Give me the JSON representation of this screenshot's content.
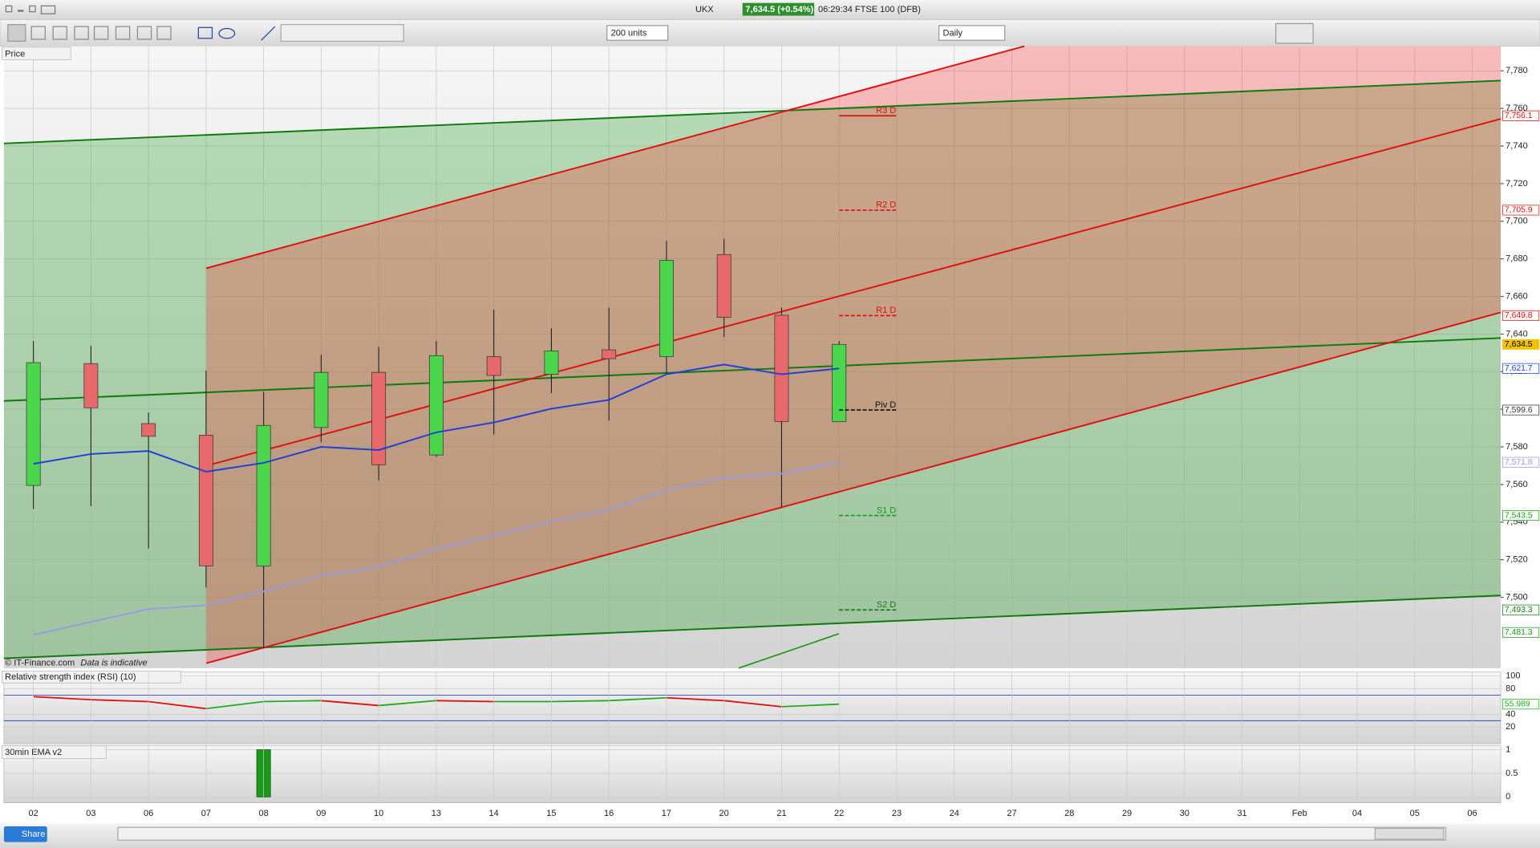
{
  "toolbar": {
    "symbol": "UKX",
    "price": "7,634.5 (+0.54%)",
    "info": "06:29:34 FTSE 100 (DFB)",
    "units": "200 units",
    "interval": "Daily"
  },
  "footer": {
    "copyright": "© IT-Finance.com",
    "note": "Data is indicative",
    "share": "Share"
  },
  "chart_data": [
    {
      "type": "candlestick",
      "title": "Price",
      "categories": [
        "02",
        "03",
        "06",
        "07",
        "08",
        "09",
        "10",
        "13",
        "14",
        "15",
        "16",
        "17",
        "20",
        "21",
        "22",
        "23",
        "24",
        "27",
        "28",
        "29",
        "30",
        "31",
        "Feb",
        "04",
        "05",
        "06"
      ],
      "open": [
        7559.5,
        7624.3,
        7592.4,
        7586.2,
        7516.7,
        7590.3,
        7619.6,
        7575.7,
        7628,
        7618.6,
        7631.6,
        7628,
        7682.3,
        7650,
        7593.5,
        null,
        null,
        null,
        null,
        null,
        null,
        null,
        null,
        null,
        null,
        null
      ],
      "high": [
        7636.3,
        7633.7,
        7598.2,
        7620.6,
        7609.2,
        7629,
        7633.2,
        7636.3,
        7653,
        7643.1,
        7654.1,
        7689.6,
        7690.7,
        7654.1,
        7636.3,
        null,
        null,
        null,
        null,
        null,
        null,
        null,
        null,
        null,
        null,
        null
      ],
      "low": [
        7547,
        7548.5,
        7526,
        7505.2,
        7472.8,
        7582.5,
        7562.1,
        7574.7,
        7586.7,
        7608.6,
        7594,
        7619.1,
        7638.4,
        7548,
        7593.5,
        null,
        null,
        null,
        null,
        null,
        null,
        null,
        null,
        null,
        null,
        null
      ],
      "close": [
        7624.8,
        7600.8,
        7585.6,
        7516.7,
        7591.4,
        7619.6,
        7570.5,
        7628.5,
        7618,
        7631,
        7626.9,
        7679.2,
        7648.9,
        7593.5,
        7634.5,
        null,
        null,
        null,
        null,
        null,
        null,
        null,
        null,
        null,
        null,
        null
      ],
      "up_color": "#4cd64c",
      "down_color": "#e8696b",
      "series": [
        {
          "color": "#1f3fd6",
          "values": [
            7571,
            7576.2,
            7577.8,
            7566.8,
            7571.5,
            7580,
            7578.3,
            7587.7,
            7593,
            7600.3,
            7605,
            7618.6,
            7623.8,
            7618.6,
            7621.7,
            null,
            null,
            null,
            null,
            null,
            null,
            null,
            null,
            null,
            null,
            null
          ]
        },
        {
          "color": "#9a9ae0",
          "values": [
            7480,
            7486.9,
            7493.7,
            7495.8,
            7503.1,
            7511.5,
            7516.2,
            7525.6,
            7532.9,
            7540.2,
            7546.5,
            7557,
            7563.7,
            7565.8,
            7571.8,
            null,
            null,
            null,
            null,
            null,
            null,
            null,
            null,
            null,
            null,
            null
          ]
        }
      ],
      "pivots": [
        {
          "name": "R3 D",
          "value": 7756.1,
          "color": "#e01010",
          "dashed": false
        },
        {
          "name": "R2 D",
          "value": 7705.9,
          "color": "#e01010",
          "dashed": true
        },
        {
          "name": "R1 D",
          "value": 7649.8,
          "color": "#e01010",
          "dashed": true
        },
        {
          "name": "Piv D",
          "value": 7599.6,
          "color": "#111111",
          "dashed": true
        },
        {
          "name": "S1 D",
          "value": 7543.5,
          "color": "#1a9a1a",
          "dashed": true
        },
        {
          "name": "S2 D",
          "value": 7493.3,
          "color": "#1a7a1a",
          "dashed": true
        }
      ],
      "price_tags": [
        {
          "value": 7756.1,
          "label": "7,756.1",
          "color": "#e01010"
        },
        {
          "value": 7705.9,
          "label": "7,705.9",
          "color": "#e01010"
        },
        {
          "value": 7649.8,
          "label": "7,649.8",
          "color": "#e01010"
        },
        {
          "value": 7634.5,
          "label": "7,634.5",
          "color": "#f2c200"
        },
        {
          "value": 7621.7,
          "label": "7,621.7",
          "color": "#1f3fd6"
        },
        {
          "value": 7599.6,
          "label": "7,599.6",
          "color": "#333333"
        },
        {
          "value": 7571.8,
          "label": "7,571.8",
          "color": "#9a9ae0"
        },
        {
          "value": 7543.5,
          "label": "7,543.5",
          "color": "#1a9a1a"
        },
        {
          "value": 7493.3,
          "label": "7,493.3",
          "color": "#1a7a1a"
        },
        {
          "value": 7481.3,
          "label": "7,481.3",
          "color": "#1a9a1a"
        }
      ],
      "ylim": [
        7462.3,
        7793.1
      ],
      "yticks": [
        {
          "value": 7500,
          "label": "7,500"
        },
        {
          "value": 7520,
          "label": "7,520"
        },
        {
          "value": 7540,
          "label": "7,540"
        },
        {
          "value": 7560,
          "label": "7,560"
        },
        {
          "value": 7580,
          "label": "7,580"
        },
        {
          "value": 7600,
          "label": "7,600"
        },
        {
          "value": 7620,
          "label": "7,620"
        },
        {
          "value": 7640,
          "label": "7,640"
        },
        {
          "value": 7660,
          "label": "7,660"
        },
        {
          "value": 7680,
          "label": "7,680"
        },
        {
          "value": 7700,
          "label": "7,700"
        },
        {
          "value": 7720,
          "label": "7,720"
        },
        {
          "value": 7740,
          "label": "7,740"
        },
        {
          "value": 7760,
          "label": "7,760"
        },
        {
          "value": 7780,
          "label": "7,780"
        }
      ],
      "grid": true
    },
    {
      "type": "line",
      "title": "Relative strength index (RSI) (10)",
      "values": [
        67.7,
        63,
        60,
        49,
        60,
        61.5,
        53.8,
        61.5,
        60,
        60,
        61.5,
        66,
        61.5,
        52,
        55.989
      ],
      "up_color": "#22aa22",
      "down_color": "#e01010",
      "hlines": [
        70,
        30
      ],
      "hline_color": "#3344cc",
      "ylim": [
        -6.2,
        106.2
      ],
      "yticks": [
        100,
        80,
        40,
        20
      ],
      "last_tag_color": "#22aa22"
    },
    {
      "type": "bar",
      "title": "30min EMA v2",
      "values": [
        0,
        0,
        0,
        0,
        1,
        0,
        0,
        0,
        0,
        0,
        0,
        0,
        0,
        0,
        0
      ],
      "color": "#1a9a1a",
      "ylim": [
        -0.125,
        1.083
      ],
      "yticks": [
        1,
        0.5,
        0
      ]
    }
  ]
}
